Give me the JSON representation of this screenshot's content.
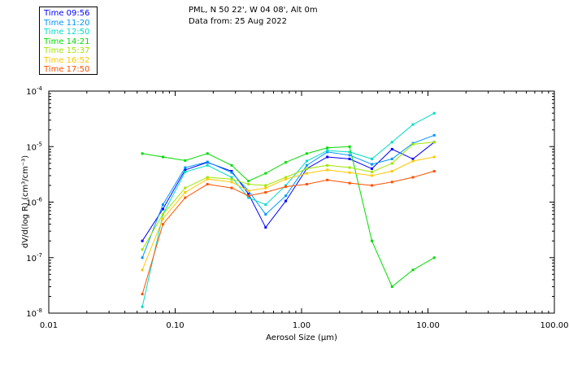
{
  "header": {
    "site": "PML, N 50 22', W 04 08', Alt 0m",
    "date": "Data from: 25 Aug 2022"
  },
  "colors": {
    "axis": "#000000",
    "background": "#ffffff"
  },
  "chart_data": {
    "type": "line",
    "xscale": "log",
    "yscale": "log",
    "xlim": [
      0.01,
      100
    ],
    "ylim": [
      1e-08,
      0.0001
    ],
    "xlabel": "Aerosol Size (μm)",
    "ylabel": "dV/d(log R) (cm³/cm⁻³)",
    "x_tick_labels": [
      "0.01",
      "0.10",
      "1.00",
      "10.00",
      "100.00"
    ],
    "x_tick_values": [
      0.01,
      0.1,
      1,
      10,
      100
    ],
    "y_tick_labels": [
      {
        "base": "10",
        "exp": "-4",
        "value": 0.0001
      },
      {
        "base": "10",
        "exp": "-5",
        "value": 1e-05
      },
      {
        "base": "10",
        "exp": "-6",
        "value": 1e-06
      },
      {
        "base": "10",
        "exp": "-7",
        "value": 1e-07
      },
      {
        "base": "10",
        "exp": "-8",
        "value": 1e-08
      }
    ],
    "x": [
      0.055,
      0.08,
      0.12,
      0.18,
      0.28,
      0.38,
      0.52,
      0.75,
      1.1,
      1.6,
      2.4,
      3.6,
      5.2,
      7.6,
      11.2
    ],
    "legend": [
      {
        "label": "Time 09:56",
        "color": "#0000ff"
      },
      {
        "label": "Time 11:20",
        "color": "#0096ff"
      },
      {
        "label": "Time 12:50",
        "color": "#00dcc8"
      },
      {
        "label": "Time 14:21",
        "color": "#00dc00"
      },
      {
        "label": "Time 15:37",
        "color": "#a0e600"
      },
      {
        "label": "Time 16:52",
        "color": "#ffc800"
      },
      {
        "label": "Time 17:50",
        "color": "#ff5000"
      }
    ],
    "series": [
      {
        "name": "Time 09:56",
        "color": "#0000ff",
        "values": [
          2e-07,
          7.5e-07,
          3.8e-06,
          5.2e-06,
          3.6e-06,
          1.4e-06,
          3.5e-07,
          1.05e-06,
          4e-06,
          6.5e-06,
          6e-06,
          4e-06,
          9e-06,
          6e-06,
          1.2e-05
        ]
      },
      {
        "name": "Time 11:20",
        "color": "#0096ff",
        "values": [
          1e-07,
          9e-07,
          4.2e-06,
          5.3e-06,
          3.4e-06,
          1.6e-06,
          6e-07,
          1.3e-06,
          4.6e-06,
          8e-06,
          7e-06,
          4.8e-06,
          6e-06,
          1.15e-05,
          1.6e-05
        ]
      },
      {
        "name": "Time 12:50",
        "color": "#00dcc8",
        "values": [
          1.3e-08,
          6e-07,
          3.5e-06,
          4.6e-06,
          2.8e-06,
          1.2e-06,
          9e-07,
          2e-06,
          5.5e-06,
          8.5e-06,
          8e-06,
          6e-06,
          1.2e-05,
          2.5e-05,
          4e-05
        ]
      },
      {
        "name": "Time 14:21",
        "color": "#00dc00",
        "values": [
          7.5e-06,
          6.5e-06,
          5.6e-06,
          7.5e-06,
          4.6e-06,
          2.4e-06,
          3.3e-06,
          5.2e-06,
          7.5e-06,
          9.5e-06,
          1e-05,
          2e-07,
          3e-08,
          6e-08,
          1e-07
        ]
      },
      {
        "name": "Time 15:37",
        "color": "#a0e600",
        "values": [
          1.4e-07,
          6e-07,
          1.8e-06,
          2.8e-06,
          2.6e-06,
          2.1e-06,
          2e-06,
          2.8e-06,
          4e-06,
          4.6e-06,
          4.2e-06,
          3.5e-06,
          5e-06,
          1.1e-05,
          1.2e-05
        ]
      },
      {
        "name": "Time 16:52",
        "color": "#ffc800",
        "values": [
          6e-08,
          5e-07,
          1.5e-06,
          2.6e-06,
          2.3e-06,
          1.6e-06,
          1.8e-06,
          2.6e-06,
          3.3e-06,
          3.8e-06,
          3.4e-06,
          3e-06,
          3.6e-06,
          5.5e-06,
          6.5e-06
        ]
      },
      {
        "name": "Time 17:50",
        "color": "#ff5000",
        "values": [
          2.2e-08,
          4e-07,
          1.2e-06,
          2.1e-06,
          1.8e-06,
          1.3e-06,
          1.5e-06,
          1.9e-06,
          2.1e-06,
          2.5e-06,
          2.2e-06,
          2e-06,
          2.3e-06,
          2.8e-06,
          3.6e-06
        ]
      }
    ]
  }
}
